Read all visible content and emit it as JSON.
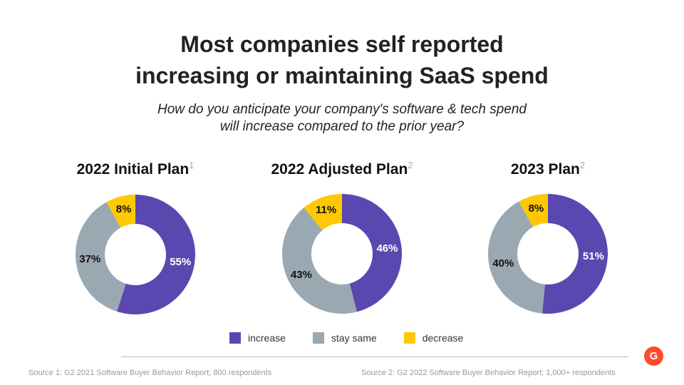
{
  "title_line1": "Most companies self reported",
  "title_line2": "increasing or maintaining SaaS spend",
  "subtitle_line1": "How do you anticipate your company's software & tech spend",
  "subtitle_line2": "will increase compared to the prior year?",
  "colors": {
    "increase": "#5a48b0",
    "stay same": "#9aa8b2",
    "decrease": "#ffc800"
  },
  "chart_data": [
    {
      "type": "pie",
      "title": "2022 Initial Plan",
      "footnote": "1",
      "categories": [
        "increase",
        "stay same",
        "decrease"
      ],
      "values": [
        55,
        37,
        8
      ],
      "labels": [
        "55%",
        "37%",
        "8%"
      ]
    },
    {
      "type": "pie",
      "title": "2022 Adjusted Plan",
      "footnote": "2",
      "categories": [
        "increase",
        "stay same",
        "decrease"
      ],
      "values": [
        46,
        43,
        11
      ],
      "labels": [
        "46%",
        "43%",
        "11%"
      ]
    },
    {
      "type": "pie",
      "title": "2023 Plan",
      "footnote": "2",
      "categories": [
        "increase",
        "stay same",
        "decrease"
      ],
      "values": [
        51,
        40,
        8
      ],
      "labels": [
        "51%",
        "40%",
        "8%"
      ]
    }
  ],
  "legend": [
    "increase",
    "stay same",
    "decrease"
  ],
  "source1": "Source 1: G2 2021 Software Buyer Behavior Report; 800  respondents",
  "source2": "Source 2: G2 2022 Software Buyer Behavior Report; 1,000+ respondents",
  "logo": "G2"
}
